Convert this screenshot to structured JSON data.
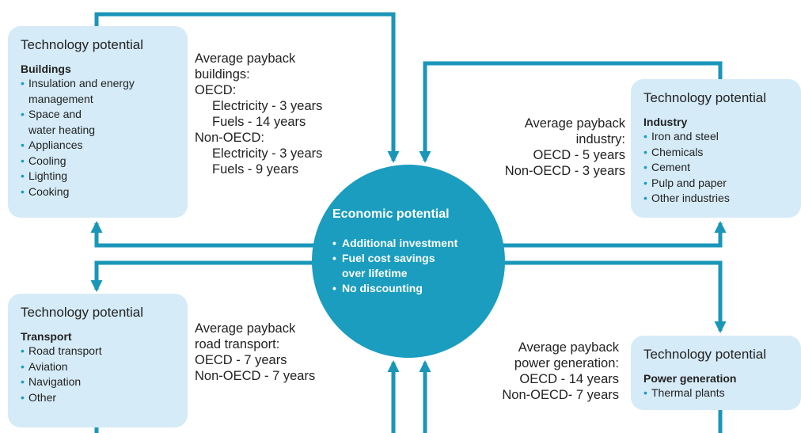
{
  "boxes": [
    {
      "title": "Technology potential",
      "sector": "Buildings",
      "items": [
        "Insulation and energy\nmanagement",
        "Space and\nwater heating",
        "Appliances",
        "Cooling",
        "Lighting",
        "Cooking"
      ]
    },
    {
      "title": "Technology potential",
      "sector": "Industry",
      "items": [
        "Iron and steel",
        "Chemicals",
        "Cement",
        "Pulp and paper",
        "Other industries"
      ]
    },
    {
      "title": "Technology potential",
      "sector": "Transport",
      "items": [
        "Road transport",
        "Aviation",
        "Navigation",
        "Other"
      ]
    },
    {
      "title": "Technology potential",
      "sector": "Power generation",
      "items": [
        "Thermal plants"
      ]
    }
  ],
  "paybacks": [
    {
      "title": "Average payback\nbuildings:",
      "groups": [
        {
          "label": "OECD:",
          "items": [
            "Electricity - 3 years",
            "Fuels - 14 years"
          ]
        },
        {
          "label": "Non-OECD:",
          "items": [
            "Electricity - 3 years",
            "Fuels - 9 years"
          ]
        }
      ]
    },
    {
      "title": "Average payback\nindustry:",
      "lines": [
        "OECD - 5 years",
        "Non-OECD - 3 years"
      ]
    },
    {
      "title": "Average payback\nroad transport:",
      "lines": [
        "OECD - 7 years",
        "Non-OECD - 7 years"
      ]
    },
    {
      "title": "Average payback\npower generation:",
      "lines": [
        "OECD - 14 years",
        "Non-OECD- 7 years"
      ]
    }
  ],
  "center": {
    "title": "Economic potential",
    "items": [
      "Additional investment",
      "Fuel cost savings\nover lifetime",
      "No discounting"
    ]
  }
}
